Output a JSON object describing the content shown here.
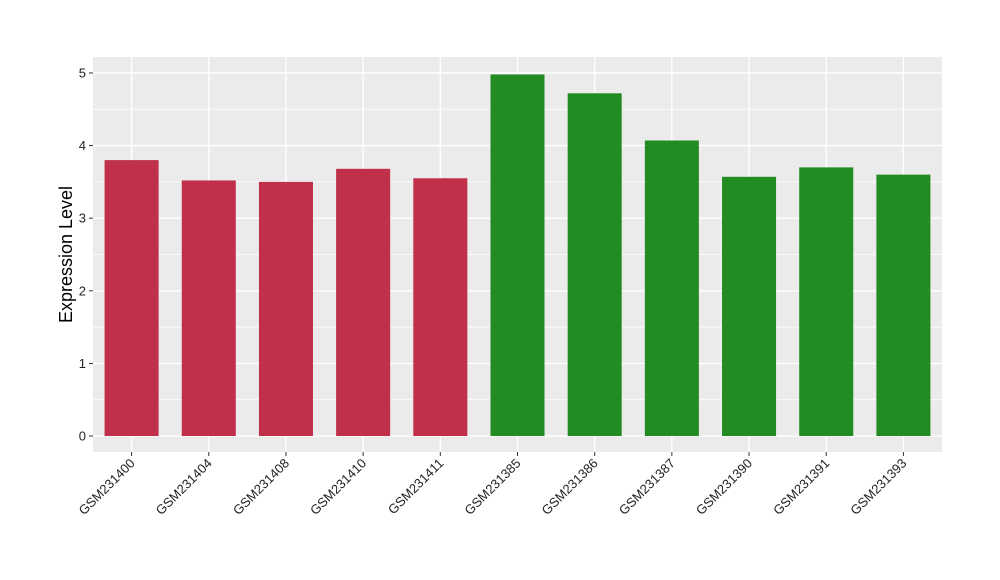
{
  "chart_data": {
    "type": "bar",
    "categories": [
      "GSM231400",
      "GSM231404",
      "GSM231408",
      "GSM231410",
      "GSM231411",
      "GSM231385",
      "GSM231386",
      "GSM231387",
      "GSM231390",
      "GSM231391",
      "GSM231393"
    ],
    "values": [
      3.8,
      3.52,
      3.5,
      3.68,
      3.55,
      4.98,
      4.72,
      4.07,
      3.57,
      3.7,
      3.6
    ],
    "bar_colors": [
      "#c0304a",
      "#c0304a",
      "#c0304a",
      "#c0304a",
      "#c0304a",
      "#228b22",
      "#228b22",
      "#228b22",
      "#228b22",
      "#228b22",
      "#228b22"
    ],
    "title": "",
    "xlabel": "",
    "ylabel": "Expression Level",
    "ylim": [
      -0.22,
      5.22
    ],
    "yticks": [
      "0",
      "1",
      "2",
      "3",
      "4",
      "5"
    ],
    "grid": true,
    "panel_background": "#ebebeb",
    "grid_color": "#ffffff",
    "legend": "none"
  }
}
